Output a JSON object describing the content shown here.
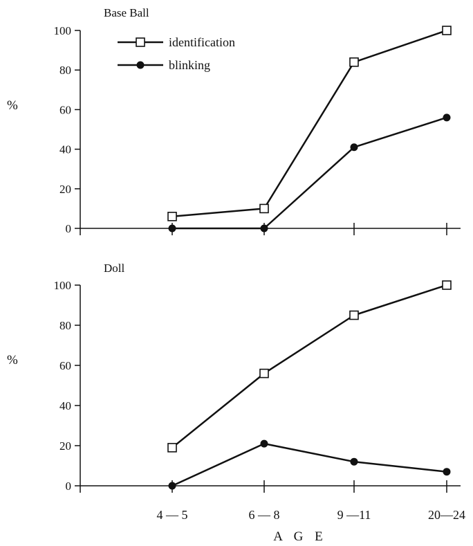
{
  "colors": {
    "ink": "#111111",
    "background": "#ffffff"
  },
  "chart_data": [
    {
      "type": "line",
      "title": "Base Ball",
      "ylabel": "%",
      "ylim": [
        0,
        100
      ],
      "yticks": [
        "0",
        "20",
        "40",
        "60",
        "80",
        "100"
      ],
      "categories": [
        "4 — 5",
        "6 — 8",
        "9 —11",
        "20—24"
      ],
      "grid": false,
      "legend": {
        "position": "top-left"
      },
      "series": [
        {
          "name": "identification",
          "marker": "open-square",
          "values": [
            6,
            10,
            84,
            100
          ]
        },
        {
          "name": "blinking",
          "marker": "filled-circle",
          "values": [
            0,
            0,
            41,
            56
          ]
        }
      ]
    },
    {
      "type": "line",
      "title": "Doll",
      "xlabel": "A G E",
      "ylabel": "%",
      "ylim": [
        0,
        100
      ],
      "yticks": [
        "0",
        "20",
        "40",
        "60",
        "80",
        "100"
      ],
      "categories": [
        "4 — 5",
        "6 — 8",
        "9 —11",
        "20—24"
      ],
      "grid": false,
      "series": [
        {
          "name": "identification",
          "marker": "open-square",
          "values": [
            19,
            56,
            85,
            100
          ]
        },
        {
          "name": "blinking",
          "marker": "filled-circle",
          "values": [
            0,
            21,
            12,
            7
          ]
        }
      ]
    }
  ]
}
